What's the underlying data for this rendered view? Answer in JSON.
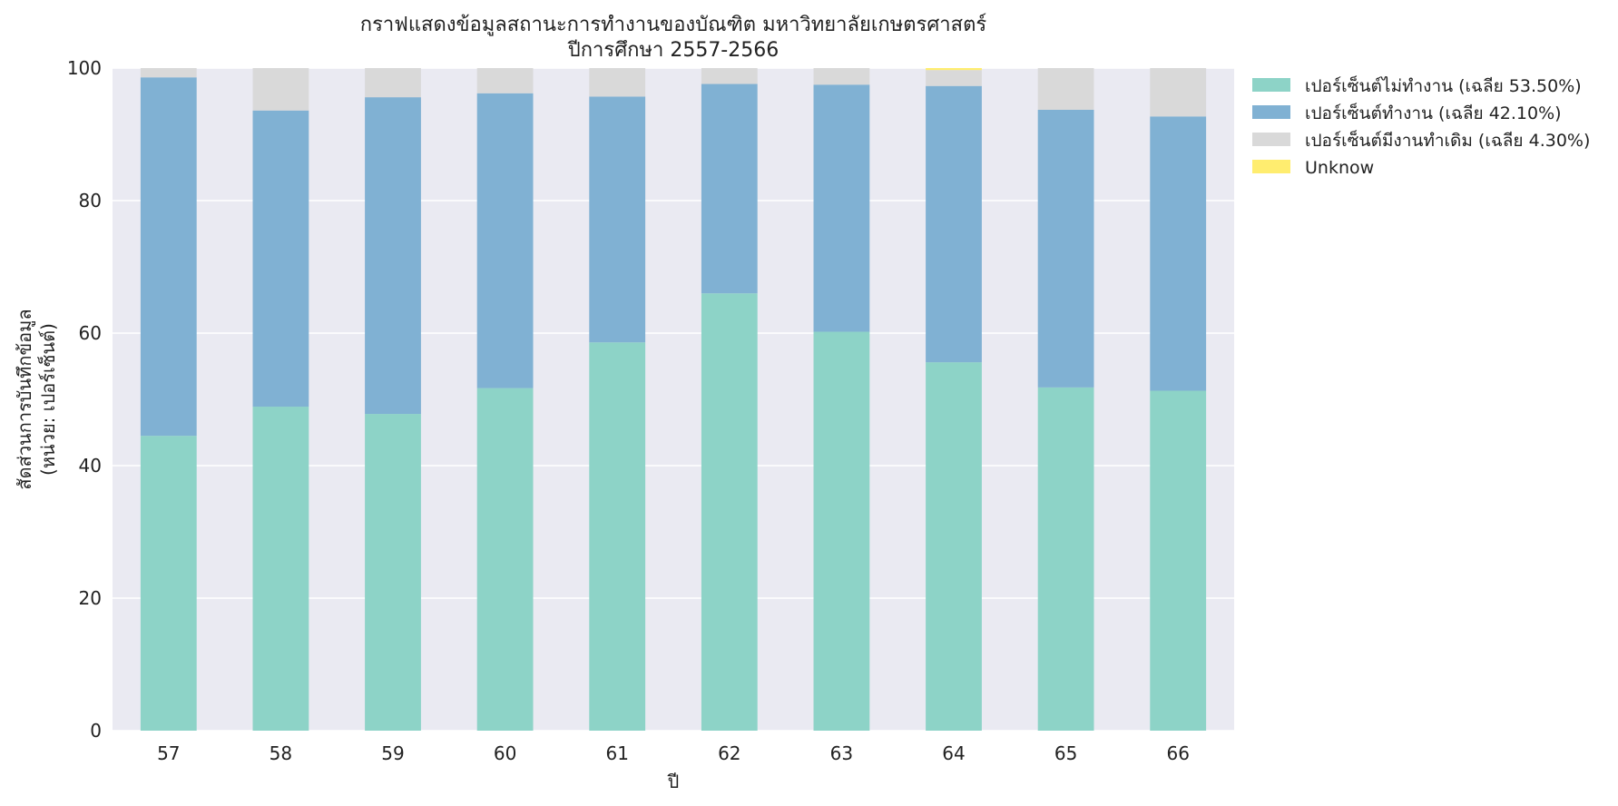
{
  "chart_data": {
    "type": "bar",
    "stacked": true,
    "title": "กราฟแสดงข้อมูลสถานะการทำงานของบัณฑิต มหาวิทยาลัยเกษตรศาสตร์",
    "subtitle": "ปีการศึกษา 2557-2566",
    "xlabel": "ปี",
    "ylabel_line1": "สัดส่วนการบันทึกข้อมูล",
    "ylabel_line2": "(หน่วย: เปอร์เซ็นต์)",
    "ylim": [
      0,
      100
    ],
    "yticks": [
      "0",
      "20",
      "40",
      "60",
      "80",
      "100"
    ],
    "grid": true,
    "legend_position": "outside-top-right",
    "categories": [
      "57",
      "58",
      "59",
      "60",
      "61",
      "62",
      "63",
      "64",
      "65",
      "66"
    ],
    "series": [
      {
        "name": "เปอร์เซ็นต์ไม่ทำงาน (เฉลีย 53.50%)",
        "color": "#8dd3c7",
        "values": [
          44.5,
          48.9,
          47.8,
          51.7,
          58.6,
          66.0,
          60.2,
          55.6,
          51.8,
          51.3
        ]
      },
      {
        "name": "เปอร์เซ็นต์ทำงาน (เฉลีย 42.10%)",
        "color": "#80b1d3",
        "values": [
          54.1,
          44.7,
          47.8,
          44.5,
          37.1,
          31.6,
          37.3,
          41.7,
          41.9,
          41.4
        ]
      },
      {
        "name": "เปอร์เซ็นต์มีงานทำเดิม (เฉลีย 4.30%)",
        "color": "#d9d9d9",
        "values": [
          1.4,
          6.4,
          4.4,
          3.8,
          4.3,
          2.4,
          2.5,
          2.4,
          6.3,
          7.3
        ]
      },
      {
        "name": "Unknow",
        "color": "#ffed6f",
        "values": [
          0,
          0,
          0,
          0,
          0,
          0,
          0,
          0.3,
          0,
          0
        ]
      }
    ],
    "plot_background": "#eaeaf2",
    "grid_color": "#ffffff"
  }
}
